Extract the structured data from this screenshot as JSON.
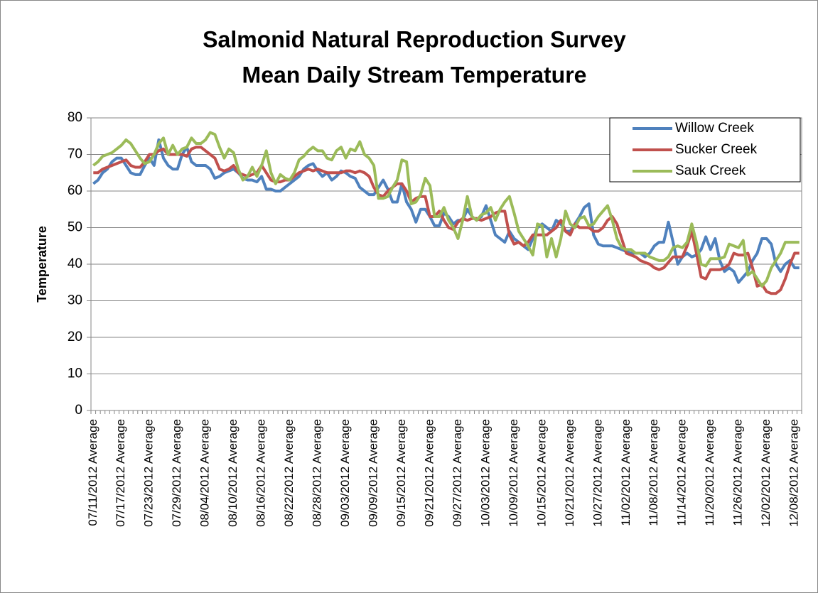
{
  "chart_data": {
    "type": "line",
    "title": "Salmonid Natural Reproduction Survey",
    "subtitle": "Mean Daily Stream Temperature",
    "y_label": "Temperature",
    "categories": [
      "07/11/2012 Average",
      null,
      null,
      null,
      null,
      null,
      "07/17/2012 Average",
      null,
      null,
      null,
      null,
      null,
      "07/23/2012 Average",
      null,
      null,
      null,
      null,
      null,
      "07/29/2012 Average",
      null,
      null,
      null,
      null,
      null,
      "08/04/2012 Average",
      null,
      null,
      null,
      null,
      null,
      "08/10/2012 Average",
      null,
      null,
      null,
      null,
      null,
      "08/16/2012 Average",
      null,
      null,
      null,
      null,
      null,
      "08/22/2012 Average",
      null,
      null,
      null,
      null,
      null,
      "08/28/2012 Average",
      null,
      null,
      null,
      null,
      null,
      "09/03/2012 Average",
      null,
      null,
      null,
      null,
      null,
      "09/09/2012 Average",
      null,
      null,
      null,
      null,
      null,
      "09/15/2012 Average",
      null,
      null,
      null,
      null,
      null,
      "09/21/2012 Average",
      null,
      null,
      null,
      null,
      null,
      "09/27/2012 Average",
      null,
      null,
      null,
      null,
      null,
      "10/03/2012 Average",
      null,
      null,
      null,
      null,
      null,
      "10/09/2012 Average",
      null,
      null,
      null,
      null,
      null,
      "10/15/2012 Average",
      null,
      null,
      null,
      null,
      null,
      "10/21/2012 Average",
      null,
      null,
      null,
      null,
      null,
      "10/27/2012 Average",
      null,
      null,
      null,
      null,
      null,
      "11/02/2012 Average",
      null,
      null,
      null,
      null,
      null,
      "11/08/2012 Average",
      null,
      null,
      null,
      null,
      null,
      "11/14/2012 Average",
      null,
      null,
      null,
      null,
      null,
      "11/20/2012 Average",
      null,
      null,
      null,
      null,
      null,
      "11/26/2012 Average",
      null,
      null,
      null,
      null,
      null,
      "12/02/2012 Average",
      null,
      null,
      null,
      null,
      null,
      "12/08/2012 Average",
      null
    ],
    "series": [
      {
        "name": "Willow Creek",
        "color": "#4f81bd",
        "values": [
          62,
          63,
          65,
          66,
          68,
          69,
          69,
          67,
          65,
          64.5,
          64.5,
          67,
          69,
          67,
          74,
          69,
          67,
          66,
          66,
          70,
          72,
          68,
          67,
          67,
          67,
          66,
          63.5,
          64,
          65,
          65.5,
          66,
          65,
          63.5,
          63,
          63,
          62.5,
          64,
          60.5,
          60.5,
          60,
          60,
          61,
          62,
          63,
          64,
          66,
          67,
          67.5,
          65.5,
          64,
          65,
          63,
          64,
          65.5,
          65,
          64,
          63.5,
          61,
          60,
          59,
          59,
          61,
          63,
          60.5,
          57,
          57,
          62,
          57,
          55,
          51.5,
          55,
          55,
          53,
          50.5,
          50.5,
          54,
          53,
          51,
          52,
          52,
          55,
          53,
          52,
          53,
          56,
          52,
          48,
          47,
          46,
          49,
          47,
          46,
          45,
          44,
          47,
          50,
          51,
          50,
          49,
          52,
          51,
          49,
          49,
          51,
          53,
          55.5,
          56.5,
          48,
          45.5,
          45,
          45,
          45,
          44.5,
          44,
          43.5,
          43,
          43,
          43,
          42,
          43,
          45,
          46,
          46,
          51.5,
          46,
          40,
          42,
          43,
          42,
          42.5,
          44,
          47.5,
          44,
          47,
          41,
          38,
          39,
          38,
          35,
          36.5,
          38,
          41,
          43,
          47,
          47,
          45.5,
          40,
          38,
          40,
          41,
          39,
          39
        ]
      },
      {
        "name": "Sucker Creek",
        "color": "#c0504d",
        "values": [
          65,
          65,
          66,
          66.5,
          67,
          67.5,
          68,
          68.5,
          67,
          66.5,
          66.5,
          68,
          70,
          70,
          71,
          71.5,
          70,
          70,
          70,
          70,
          69.5,
          71.5,
          72,
          72,
          71,
          70,
          69,
          66,
          65.5,
          66,
          67,
          65,
          64.5,
          64,
          64.5,
          65,
          67,
          65,
          63,
          62.5,
          62.5,
          63,
          63,
          64,
          65,
          65.5,
          66,
          65.5,
          66,
          65.5,
          65,
          65,
          65,
          65,
          65.5,
          65.5,
          65,
          65.5,
          65,
          64,
          61,
          59,
          58.5,
          60,
          61,
          62,
          62,
          60,
          57,
          58,
          58.5,
          58.5,
          53,
          53,
          54.5,
          52,
          50,
          49.5,
          51.5,
          52.5,
          52,
          52.5,
          52.5,
          52,
          52.5,
          53,
          54,
          54.5,
          54.5,
          48,
          45.5,
          46,
          45,
          46,
          48,
          48,
          48,
          48,
          49,
          50,
          52,
          49,
          48,
          51,
          50,
          50,
          50,
          49,
          49,
          50,
          52,
          53,
          51,
          47,
          43,
          42.5,
          42,
          41,
          40.5,
          40,
          39,
          38.5,
          39,
          40.5,
          42,
          42,
          42,
          45,
          49,
          43,
          36.5,
          36,
          38.5,
          38.5,
          38.5,
          39,
          40,
          43,
          42.5,
          42.5,
          43,
          39,
          34,
          34.5,
          32.5,
          32,
          32,
          33,
          36,
          40,
          43,
          43
        ]
      },
      {
        "name": "Sauk Creek",
        "color": "#9bbb59",
        "values": [
          67,
          68,
          69.5,
          70,
          70.5,
          71.5,
          72.5,
          74,
          73,
          71,
          69,
          67.5,
          68,
          70,
          73,
          74.5,
          70,
          72.5,
          70,
          71.5,
          72,
          74.5,
          73,
          73,
          74,
          76,
          75.5,
          72,
          69,
          71.5,
          70.5,
          66,
          63,
          64,
          66.5,
          64,
          67,
          71,
          65,
          62,
          64.5,
          63.5,
          63,
          65,
          68.5,
          69.5,
          71,
          72,
          71,
          71,
          69,
          68.5,
          71,
          72,
          69,
          71.5,
          71,
          73.5,
          70,
          69,
          67,
          58,
          58,
          58.5,
          61,
          63,
          68.5,
          68,
          56.5,
          57,
          59,
          63.5,
          61.5,
          53,
          53,
          55.5,
          52,
          50,
          47,
          52,
          58.5,
          53,
          52,
          53.5,
          54,
          55.5,
          52,
          55,
          57,
          58.5,
          54,
          49,
          47,
          45,
          42.5,
          51,
          50.5,
          42,
          47,
          42,
          47,
          54.5,
          51,
          50,
          52.5,
          53,
          50.5,
          51,
          53,
          54.5,
          56,
          52,
          47,
          44.5,
          44,
          44,
          43,
          43,
          43,
          42,
          41.5,
          41,
          41,
          42,
          44.5,
          45,
          44.5,
          46,
          51,
          46,
          40,
          39.5,
          41.5,
          41.5,
          41.5,
          42,
          45.5,
          45,
          44.5,
          46.5,
          37,
          38,
          36,
          34,
          35.5,
          39,
          41,
          43,
          46,
          46,
          46,
          46
        ]
      }
    ],
    "ylim": [
      0,
      80
    ],
    "yticks": [
      0,
      10,
      20,
      30,
      40,
      50,
      60,
      70,
      80
    ],
    "grid": true,
    "legend": "top-right"
  }
}
